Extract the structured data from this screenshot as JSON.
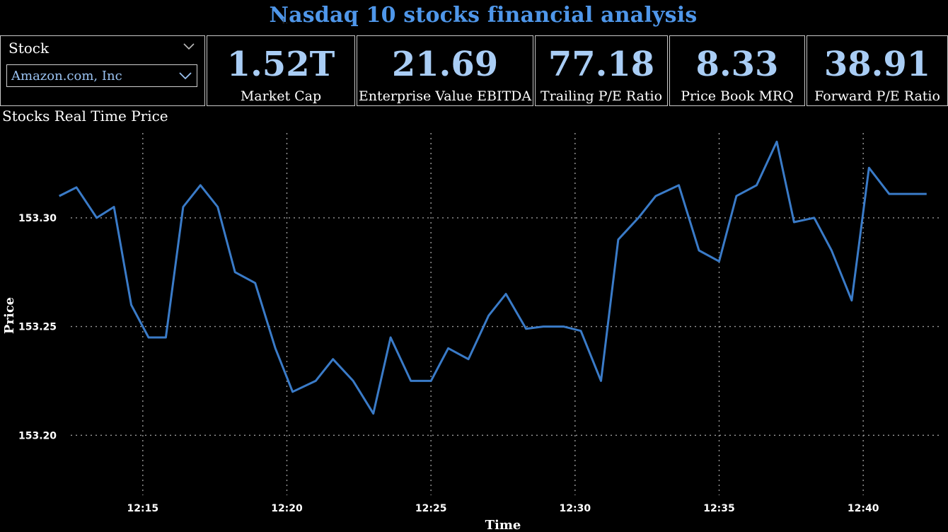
{
  "title": "Nasdaq 10 stocks financial analysis",
  "ghost_text": "1.",
  "selector": {
    "label": "Stock",
    "value": "Amazon.com, Inc",
    "icon": "chevron-down-icon"
  },
  "kpis": [
    {
      "value": "1.52T",
      "label": "Market Cap"
    },
    {
      "value": "21.69",
      "label": "Enterprise Value EBITDA"
    },
    {
      "value": "77.18",
      "label": "Trailing P/E Ratio"
    },
    {
      "value": "8.33",
      "label": "Price Book MRQ"
    },
    {
      "value": "38.91",
      "label": "Forward P/E Ratio"
    }
  ],
  "colors": {
    "title": "#4f97ea",
    "kpi_value": "#a9cdf5",
    "line": "#3a7bc8",
    "grid": "#9a9a9a"
  },
  "chart_data": {
    "type": "line",
    "title": "Stocks Real Time Price",
    "xlabel": "Time",
    "ylabel": "Price",
    "x_ticks": [
      "12:15",
      "12:20",
      "12:25",
      "12:30",
      "12:35",
      "12:40"
    ],
    "x_tick_minutes": [
      15,
      20,
      25,
      30,
      35,
      40
    ],
    "y_ticks": [
      153.2,
      153.25,
      153.3
    ],
    "xlim_minutes": [
      12.5,
      42.5
    ],
    "ylim": [
      153.177,
      153.339
    ],
    "grid": true,
    "series": [
      {
        "x_minutes": [
          12.1,
          12.7,
          13.4,
          14.0,
          14.6,
          15.2,
          15.8,
          16.4,
          17.0,
          17.6,
          18.2,
          18.9,
          19.6,
          20.2,
          21.0,
          21.6,
          22.3,
          23.0,
          23.6,
          24.3,
          25.0,
          25.6,
          26.3,
          27.0,
          27.6,
          28.3,
          28.9,
          29.6,
          30.2,
          30.9,
          31.5,
          32.2,
          32.8,
          33.6,
          34.3,
          35.0,
          35.6,
          36.3,
          37.0,
          37.6,
          38.3,
          38.9,
          39.6,
          40.2,
          40.9,
          41.5,
          42.2
        ],
        "values": [
          153.31,
          153.314,
          153.3,
          153.305,
          153.26,
          153.245,
          153.245,
          153.305,
          153.315,
          153.305,
          153.275,
          153.27,
          153.24,
          153.22,
          153.225,
          153.235,
          153.225,
          153.21,
          153.245,
          153.225,
          153.225,
          153.24,
          153.235,
          153.255,
          153.265,
          153.249,
          153.25,
          153.25,
          153.248,
          153.225,
          153.29,
          153.3,
          153.31,
          153.315,
          153.285,
          153.28,
          153.31,
          153.315,
          153.335,
          153.298,
          153.3,
          153.285,
          153.262,
          153.323,
          153.311,
          153.311,
          153.311
        ]
      }
    ]
  }
}
